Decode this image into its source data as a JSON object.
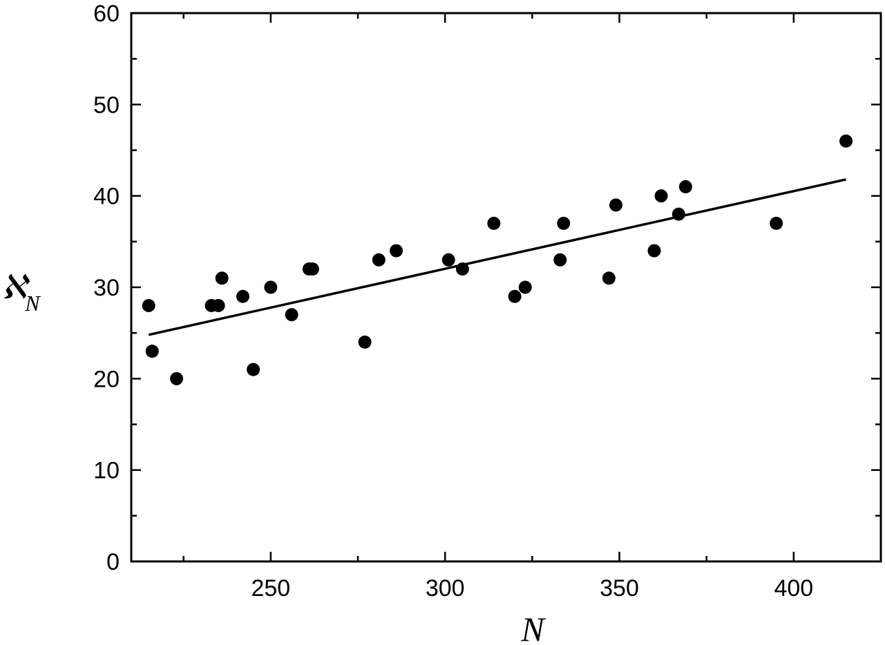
{
  "chart_data": {
    "type": "scatter",
    "xlabel": "N",
    "ylabel": "ℵ",
    "ylabel_sub": "N",
    "xlim": [
      210,
      425
    ],
    "ylim": [
      0,
      60
    ],
    "x_ticks": [
      250,
      300,
      350,
      400
    ],
    "x_tick_labels": [
      "250",
      "300",
      "350",
      "400"
    ],
    "x_minor_ticks": [
      225,
      275,
      325,
      375
    ],
    "y_ticks": [
      0,
      10,
      20,
      30,
      40,
      50,
      60
    ],
    "y_tick_labels": [
      "0",
      "10",
      "20",
      "30",
      "40",
      "50",
      "60"
    ],
    "y_minor_ticks": [
      5,
      15,
      25,
      35,
      45,
      55
    ],
    "grid": false,
    "series": [
      {
        "type": "scatter",
        "points": [
          [
            215,
            28
          ],
          [
            216,
            23
          ],
          [
            223,
            20
          ],
          [
            233,
            28
          ],
          [
            235,
            28
          ],
          [
            236,
            31
          ],
          [
            242,
            29
          ],
          [
            245,
            21
          ],
          [
            250,
            30
          ],
          [
            256,
            27
          ],
          [
            261,
            32
          ],
          [
            262,
            32
          ],
          [
            277,
            24
          ],
          [
            281,
            33
          ],
          [
            286,
            34
          ],
          [
            301,
            33
          ],
          [
            305,
            32
          ],
          [
            314,
            37
          ],
          [
            320,
            29
          ],
          [
            323,
            30
          ],
          [
            333,
            33
          ],
          [
            334,
            37
          ],
          [
            347,
            31
          ],
          [
            349,
            39
          ],
          [
            360,
            34
          ],
          [
            362,
            40
          ],
          [
            367,
            38
          ],
          [
            369,
            41
          ],
          [
            395,
            37
          ],
          [
            415,
            46
          ]
        ]
      },
      {
        "type": "line",
        "points": [
          [
            215,
            24.8
          ],
          [
            415,
            41.8
          ]
        ]
      }
    ]
  }
}
